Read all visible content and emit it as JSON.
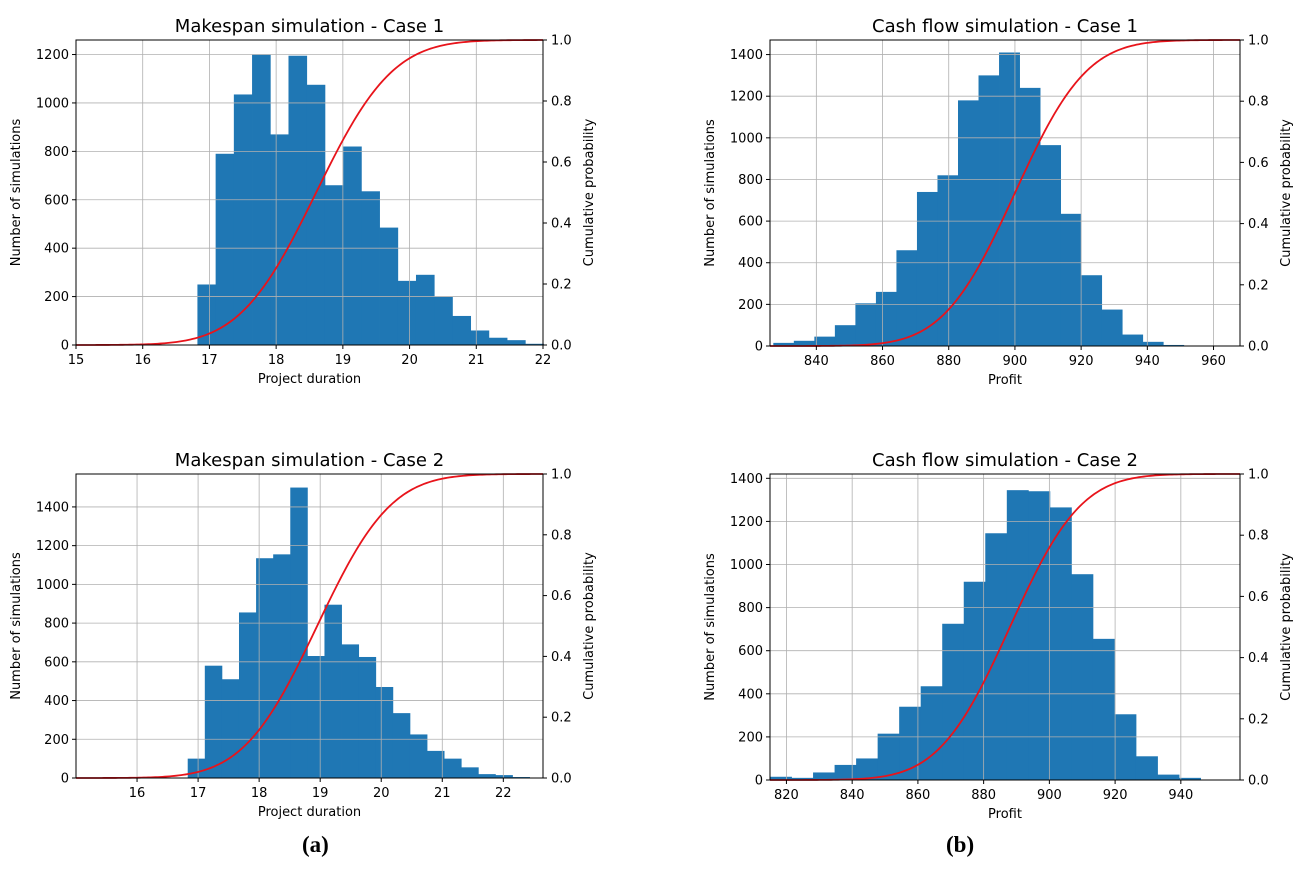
{
  "panel_labels": [
    "(a)",
    "(b)"
  ],
  "colors": {
    "bar": "#1f77b4",
    "cdf": "#e8141b",
    "grid": "#b0b0b0",
    "axis": "#000000"
  },
  "chart_data": [
    {
      "type": "bar",
      "title": "Makespan simulation - Case 1",
      "xlabel": "Project duration",
      "ylabel": "Number of simulations",
      "y2label": "Cumulative probability",
      "xlim": [
        15,
        22
      ],
      "ylim": [
        0,
        1260
      ],
      "y2lim": [
        0,
        1
      ],
      "xticks": [
        15,
        16,
        17,
        18,
        19,
        20,
        21,
        22
      ],
      "yticks": [
        0,
        200,
        400,
        600,
        800,
        1000,
        1200
      ],
      "y2ticks": [
        "0.0",
        "0.2",
        "0.4",
        "0.6",
        "0.8",
        "1.0"
      ],
      "grid": true,
      "bins": {
        "start": 16.82,
        "width": 0.273,
        "counts": [
          250,
          790,
          1035,
          1200,
          870,
          1195,
          1075,
          660,
          820,
          635,
          485,
          265,
          290,
          200,
          120,
          60,
          30,
          20,
          5
        ]
      },
      "cdf": {
        "mean": 18.6,
        "sd": 0.9,
        "label": "cumulative"
      }
    },
    {
      "type": "bar",
      "title": "Cash flow simulation - Case 1",
      "xlabel": "Profit",
      "ylabel": "Number of simulations",
      "y2label": "Cumulative probability",
      "xlim": [
        826,
        968
      ],
      "ylim": [
        0,
        1470
      ],
      "y2lim": [
        0,
        1
      ],
      "xticks": [
        840,
        860,
        880,
        900,
        920,
        940,
        960
      ],
      "yticks": [
        0,
        200,
        400,
        600,
        800,
        1000,
        1200,
        1400
      ],
      "y2ticks": [
        "0.0",
        "0.2",
        "0.4",
        "0.6",
        "0.8",
        "1.0"
      ],
      "grid": true,
      "bins": {
        "start": 827,
        "width": 6.2,
        "counts": [
          15,
          25,
          45,
          100,
          205,
          260,
          460,
          740,
          820,
          1180,
          1300,
          1410,
          1240,
          965,
          635,
          340,
          175,
          55,
          20,
          5
        ]
      },
      "cdf": {
        "mean": 900,
        "sd": 17,
        "label": "cumulative"
      }
    },
    {
      "type": "bar",
      "title": "Makespan simulation - Case 2",
      "xlabel": "Project duration",
      "ylabel": "Number of simulations",
      "y2label": "Cumulative probability",
      "xlim": [
        15,
        22.65
      ],
      "ylim": [
        0,
        1570
      ],
      "y2lim": [
        0,
        1
      ],
      "xticks": [
        16,
        17,
        18,
        19,
        20,
        21,
        22
      ],
      "yticks": [
        0,
        200,
        400,
        600,
        800,
        1000,
        1200,
        1400
      ],
      "y2ticks": [
        "0.0",
        "0.2",
        "0.4",
        "0.6",
        "0.8",
        "1.0"
      ],
      "grid": true,
      "bins": {
        "start": 16.83,
        "width": 0.28,
        "counts": [
          100,
          580,
          510,
          855,
          1135,
          1155,
          1500,
          630,
          895,
          690,
          625,
          470,
          335,
          225,
          140,
          100,
          55,
          20,
          15,
          5
        ]
      },
      "cdf": {
        "mean": 18.95,
        "sd": 0.95,
        "label": "cumulative"
      }
    },
    {
      "type": "bar",
      "title": "Cash flow simulation - Case 2",
      "xlabel": "Profit",
      "ylabel": "Number of simulations",
      "y2label": "Cumulative probability",
      "xlim": [
        815,
        958
      ],
      "ylim": [
        0,
        1420
      ],
      "y2lim": [
        0,
        1
      ],
      "xticks": [
        820,
        840,
        860,
        880,
        900,
        920,
        940
      ],
      "yticks": [
        0,
        200,
        400,
        600,
        800,
        1000,
        1200,
        1400
      ],
      "y2ticks": [
        "0.0",
        "0.2",
        "0.4",
        "0.6",
        "0.8",
        "1.0"
      ],
      "grid": true,
      "bins": {
        "start": 815,
        "width": 6.55,
        "counts": [
          15,
          10,
          35,
          70,
          100,
          215,
          340,
          435,
          725,
          920,
          1145,
          1345,
          1340,
          1265,
          955,
          655,
          305,
          110,
          25,
          10
        ]
      },
      "cdf": {
        "mean": 888,
        "sd": 17,
        "label": "cumulative"
      }
    }
  ]
}
